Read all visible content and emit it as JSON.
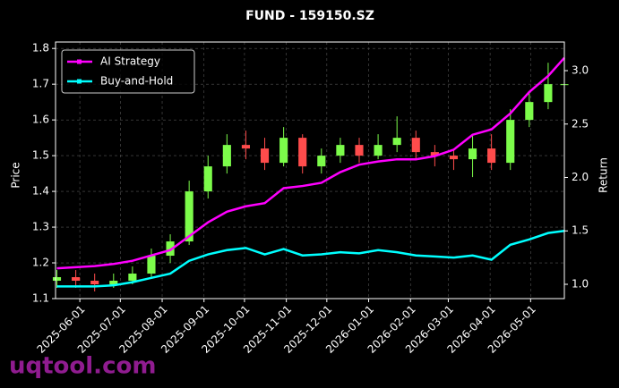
{
  "chart_data": {
    "type": "candlestick",
    "title": "FUND - 159150.SZ",
    "ylabel": "Price",
    "y2label": "Return",
    "watermark": "uqtool.com",
    "x": [
      "2025-05-15",
      "2025-05-29",
      "2025-06-12",
      "2025-06-26",
      "2025-07-10",
      "2025-07-24",
      "2025-08-07",
      "2025-08-21",
      "2025-09-04",
      "2025-09-18",
      "2025-10-02",
      "2025-10-16",
      "2025-10-30",
      "2025-11-13",
      "2025-11-27",
      "2025-12-11",
      "2025-12-25",
      "2026-01-08",
      "2026-01-22",
      "2026-02-05",
      "2026-02-19",
      "2026-03-05",
      "2026-03-19",
      "2026-04-02",
      "2026-04-16",
      "2026-04-30",
      "2026-05-14",
      "2026-05-26"
    ],
    "open": [
      1.15,
      1.16,
      1.15,
      1.14,
      1.15,
      1.17,
      1.22,
      1.26,
      1.4,
      1.47,
      1.53,
      1.52,
      1.48,
      1.55,
      1.47,
      1.5,
      1.53,
      1.5,
      1.53,
      1.55,
      1.51,
      1.5,
      1.49,
      1.52,
      1.48,
      1.6,
      1.65,
      1.7
    ],
    "high": [
      1.18,
      1.18,
      1.17,
      1.17,
      1.19,
      1.24,
      1.28,
      1.43,
      1.5,
      1.56,
      1.57,
      1.55,
      1.58,
      1.56,
      1.52,
      1.55,
      1.55,
      1.56,
      1.61,
      1.57,
      1.53,
      1.52,
      1.56,
      1.56,
      1.63,
      1.68,
      1.76,
      1.74
    ],
    "low": [
      1.13,
      1.13,
      1.12,
      1.13,
      1.14,
      1.16,
      1.2,
      1.25,
      1.38,
      1.45,
      1.49,
      1.46,
      1.47,
      1.45,
      1.45,
      1.48,
      1.48,
      1.49,
      1.51,
      1.49,
      1.47,
      1.46,
      1.44,
      1.46,
      1.46,
      1.58,
      1.63,
      1.66
    ],
    "close": [
      1.16,
      1.15,
      1.14,
      1.15,
      1.17,
      1.22,
      1.26,
      1.4,
      1.47,
      1.53,
      1.52,
      1.48,
      1.55,
      1.47,
      1.5,
      1.53,
      1.5,
      1.53,
      1.55,
      1.51,
      1.5,
      1.49,
      1.52,
      1.48,
      1.6,
      1.65,
      1.7,
      1.7
    ],
    "up_color": "#7cfc4a",
    "down_color": "#ff4c4c",
    "series": [
      {
        "name": "AI Strategy",
        "color": "#ff00ff",
        "axis": "y2",
        "values": [
          1.15,
          1.16,
          1.17,
          1.19,
          1.22,
          1.27,
          1.32,
          1.45,
          1.58,
          1.68,
          1.73,
          1.76,
          1.9,
          1.92,
          1.95,
          2.05,
          2.12,
          2.15,
          2.17,
          2.17,
          2.2,
          2.26,
          2.4,
          2.45,
          2.6,
          2.8,
          2.95,
          3.12
        ]
      },
      {
        "name": "Buy-and-Hold",
        "color": "#00ffff",
        "axis": "y2",
        "values": [
          0.98,
          0.98,
          0.98,
          0.99,
          1.02,
          1.06,
          1.1,
          1.22,
          1.28,
          1.32,
          1.34,
          1.28,
          1.33,
          1.27,
          1.28,
          1.3,
          1.29,
          1.32,
          1.3,
          1.27,
          1.26,
          1.25,
          1.27,
          1.23,
          1.37,
          1.42,
          1.48,
          1.5
        ]
      }
    ],
    "xlim": [
      "2025-05-14",
      "2026-05-26"
    ],
    "xticks": [
      "2025-06-01",
      "2025-07-01",
      "2025-08-01",
      "2025-09-01",
      "2025-10-01",
      "2025-11-01",
      "2025-12-01",
      "2026-01-01",
      "2026-02-01",
      "2026-03-01",
      "2026-04-01",
      "2026-05-01"
    ],
    "ylim": [
      1.1,
      1.818
    ],
    "yticks": [
      1.1,
      1.2,
      1.3,
      1.4,
      1.5,
      1.6,
      1.7,
      1.8
    ],
    "y2lim": [
      0.866,
      3.268
    ],
    "y2ticks": [
      {
        "value": 1,
        "label": "1.0"
      },
      1.5,
      {
        "value": 2,
        "label": "2.0"
      },
      2.5,
      {
        "value": 3,
        "label": "3.0"
      }
    ],
    "grid": true,
    "legend": "upper left"
  }
}
